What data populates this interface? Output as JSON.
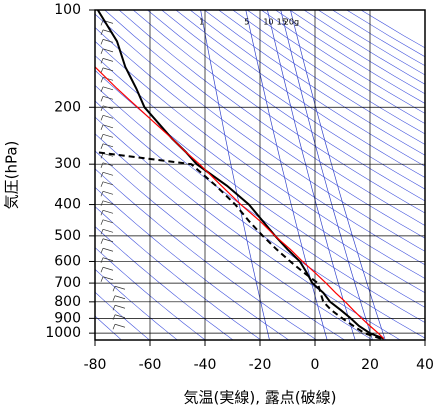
{
  "chart_data": {
    "type": "line",
    "xlabel": "気温(実線), 露点(破線)",
    "ylabel": "気圧(hPa)",
    "xlim": [
      -80,
      40
    ],
    "xticks": [
      -80,
      -60,
      -40,
      -20,
      0,
      20,
      40
    ],
    "ylim": [
      1050,
      100
    ],
    "yticks": [
      100,
      200,
      300,
      400,
      500,
      600,
      700,
      800,
      900,
      1000
    ],
    "log_y": true,
    "grid": true,
    "mixing_ratios": [
      1,
      5,
      10,
      15,
      {
        "value": 20,
        "label": "20g"
      }
    ],
    "mixing_ratio_color": "#3344cc",
    "y": [
      1040,
      1000,
      950,
      900,
      850,
      800,
      750,
      700,
      650,
      600,
      550,
      500,
      450,
      400,
      350,
      300,
      275,
      250,
      200,
      175,
      150,
      125,
      100
    ],
    "series": [
      {
        "color": "#000000",
        "dash": false,
        "values": [
          25,
          20,
          16,
          13,
          9.5,
          5.5,
          3,
          -1,
          -3,
          -5.5,
          -10,
          -14.5,
          -19,
          -24,
          -32,
          -43,
          -47,
          -52,
          -62,
          -65,
          -69,
          -72,
          -79
        ]
      },
      {
        "color": "#000000",
        "dash": true,
        "values": [
          24,
          18,
          14,
          10,
          6,
          3,
          2,
          1,
          -4,
          -9,
          -14,
          -19,
          -24,
          -29,
          -36,
          -45,
          -80,
          null,
          null,
          null,
          null,
          null,
          null
        ]
      },
      {
        "color": "#ff0000",
        "dash": false,
        "values": [
          25,
          23,
          20,
          17,
          14,
          11,
          7.5,
          4,
          0,
          -4.5,
          -9,
          -14.5,
          -20,
          -27,
          -34,
          -42,
          -47,
          -52,
          -64.5,
          -72,
          -80,
          null,
          null
        ]
      }
    ]
  }
}
